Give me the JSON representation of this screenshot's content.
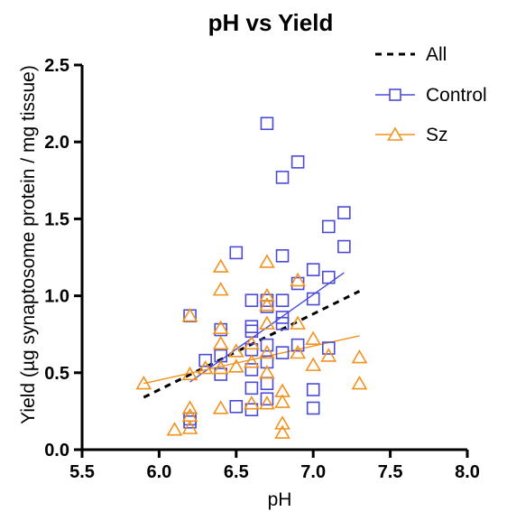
{
  "chart_data": {
    "type": "scatter",
    "title": "pH vs Yield",
    "xlabel": "pH",
    "ylabel": "Yield (µg synaptosome protein / mg tissue)",
    "xlim": [
      5.5,
      8.0
    ],
    "ylim": [
      0.0,
      2.5
    ],
    "x_ticks": [
      "5.5",
      "6.0",
      "6.5",
      "7.0",
      "7.5",
      "8.0"
    ],
    "y_ticks": [
      "0.0",
      "0.5",
      "1.0",
      "1.5",
      "2.0",
      "2.5"
    ],
    "grid": false,
    "legend_position": "top-right",
    "series": [
      {
        "name": "Control",
        "marker": "square",
        "color": "#4a4ad6",
        "points": [
          [
            6.2,
            0.87
          ],
          [
            6.2,
            0.2
          ],
          [
            6.2,
            0.18
          ],
          [
            6.3,
            0.58
          ],
          [
            6.4,
            0.78
          ],
          [
            6.4,
            0.61
          ],
          [
            6.4,
            0.49
          ],
          [
            6.5,
            1.28
          ],
          [
            6.5,
            0.28
          ],
          [
            6.6,
            0.97
          ],
          [
            6.6,
            0.8
          ],
          [
            6.6,
            0.77
          ],
          [
            6.6,
            0.65
          ],
          [
            6.6,
            0.52
          ],
          [
            6.6,
            0.4
          ],
          [
            6.6,
            0.26
          ],
          [
            6.7,
            2.12
          ],
          [
            6.7,
            0.97
          ],
          [
            6.7,
            0.93
          ],
          [
            6.7,
            0.68
          ],
          [
            6.7,
            0.57
          ],
          [
            6.7,
            0.43
          ],
          [
            6.7,
            0.33
          ],
          [
            6.8,
            1.77
          ],
          [
            6.8,
            1.26
          ],
          [
            6.8,
            0.97
          ],
          [
            6.8,
            0.86
          ],
          [
            6.8,
            0.82
          ],
          [
            6.8,
            0.63
          ],
          [
            6.9,
            1.87
          ],
          [
            6.9,
            1.08
          ],
          [
            6.9,
            0.68
          ],
          [
            7.0,
            1.17
          ],
          [
            7.0,
            0.98
          ],
          [
            7.0,
            0.39
          ],
          [
            7.0,
            0.27
          ],
          [
            7.1,
            1.45
          ],
          [
            7.1,
            1.12
          ],
          [
            7.1,
            0.66
          ],
          [
            7.2,
            1.54
          ],
          [
            7.2,
            1.32
          ]
        ]
      },
      {
        "name": "Sz",
        "marker": "triangle",
        "color": "#f0921e",
        "points": [
          [
            5.9,
            0.43
          ],
          [
            6.1,
            0.13
          ],
          [
            6.2,
            0.87
          ],
          [
            6.2,
            0.49
          ],
          [
            6.2,
            0.27
          ],
          [
            6.2,
            0.22
          ],
          [
            6.2,
            0.14
          ],
          [
            6.3,
            0.53
          ],
          [
            6.4,
            1.19
          ],
          [
            6.4,
            1.04
          ],
          [
            6.4,
            0.79
          ],
          [
            6.4,
            0.69
          ],
          [
            6.4,
            0.53
          ],
          [
            6.4,
            0.27
          ],
          [
            6.5,
            0.64
          ],
          [
            6.5,
            0.54
          ],
          [
            6.6,
            0.69
          ],
          [
            6.6,
            0.57
          ],
          [
            6.6,
            0.3
          ],
          [
            6.7,
            1.22
          ],
          [
            6.7,
            1.0
          ],
          [
            6.7,
            0.94
          ],
          [
            6.7,
            0.82
          ],
          [
            6.7,
            0.63
          ],
          [
            6.7,
            0.5
          ],
          [
            6.7,
            0.3
          ],
          [
            6.8,
            0.38
          ],
          [
            6.8,
            0.31
          ],
          [
            6.8,
            0.17
          ],
          [
            6.8,
            0.11
          ],
          [
            6.9,
            1.1
          ],
          [
            6.9,
            0.82
          ],
          [
            6.9,
            0.63
          ],
          [
            7.0,
            0.72
          ],
          [
            7.0,
            0.55
          ],
          [
            7.1,
            0.61
          ],
          [
            7.3,
            0.6
          ],
          [
            7.3,
            0.43
          ]
        ]
      }
    ],
    "fits": [
      {
        "name": "All",
        "style": "dashed",
        "color": "#000000",
        "x": [
          5.9,
          7.3
        ],
        "y": [
          0.34,
          1.03
        ]
      },
      {
        "name": "Control",
        "style": "solid",
        "color": "#4a4ad6",
        "x": [
          6.2,
          7.2
        ],
        "y": [
          0.44,
          1.15
        ]
      },
      {
        "name": "Sz",
        "style": "solid",
        "color": "#f0921e",
        "x": [
          5.9,
          7.3
        ],
        "y": [
          0.43,
          0.74
        ]
      }
    ],
    "legend": [
      {
        "label": "All",
        "style": "dashed-line",
        "color": "#000000"
      },
      {
        "label": "Control",
        "style": "square-line",
        "color": "#4a4ad6"
      },
      {
        "label": "Sz",
        "style": "triangle-line",
        "color": "#f0921e"
      }
    ]
  }
}
